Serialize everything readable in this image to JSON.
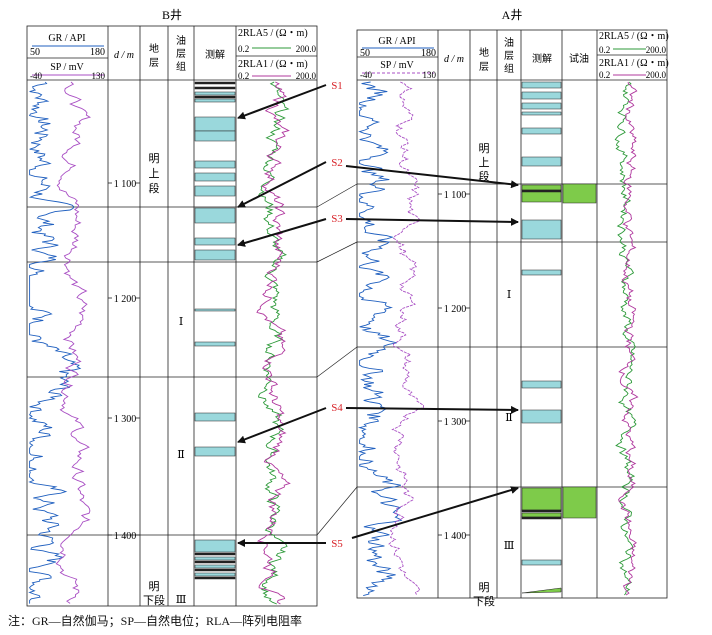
{
  "note": "注：GR—自然伽马；SP—自然电位；RLA—阵列电阻率",
  "wells": {
    "B": {
      "title": "B井",
      "gr": {
        "label": "GR / API",
        "min": "50",
        "max": "180"
      },
      "sp": {
        "label": "SP / mV",
        "min": "-40",
        "max": "130"
      },
      "depth_label": "d / m",
      "strata_label": [
        "地",
        "层"
      ],
      "oil_group_label": [
        "油",
        "层",
        "组"
      ],
      "interp_label": "测解",
      "rla5": {
        "label": "2RLA5 / (Ω・m)",
        "min": "0.2",
        "max": "200.0"
      },
      "rla1": {
        "label": "2RLA1 / (Ω・m)",
        "min": "0.2",
        "max": "200.0"
      },
      "depths": [
        "1 100",
        "1 200",
        "1 300",
        "1 400"
      ],
      "strata": [
        [
          "明",
          "上",
          "段"
        ],
        [
          "明",
          "下段"
        ]
      ],
      "oil_groups": [
        "Ⅰ",
        "Ⅱ",
        "Ⅲ"
      ]
    },
    "A": {
      "title": "A井",
      "gr": {
        "label": "GR / API",
        "min": "50",
        "max": "180"
      },
      "sp": {
        "label": "SP / mV",
        "min": "-40",
        "max": "130"
      },
      "depth_label": "d / m",
      "strata_label": [
        "地",
        "层"
      ],
      "oil_group_label": [
        "油",
        "层",
        "组"
      ],
      "interp_label": "测解",
      "test_label": "试油",
      "rla5": {
        "label": "2RLA5 / (Ω・m)",
        "min": "0.2",
        "max": "200.0"
      },
      "rla1": {
        "label": "2RLA1 / (Ω・m)",
        "min": "0.2",
        "max": "200.0"
      },
      "depths": [
        "1 100",
        "1 200",
        "1 300",
        "1 400"
      ],
      "strata": [
        [
          "明",
          "上",
          "段"
        ],
        [
          "明",
          "下段"
        ]
      ],
      "oil_groups": [
        "Ⅰ",
        "Ⅱ",
        "Ⅲ"
      ]
    }
  },
  "sands": [
    "S1",
    "S2",
    "S3",
    "S4",
    "S5"
  ],
  "colors": {
    "gr": "#1f5fbf",
    "sp": "#a94fc4",
    "rla5": "#2e9a3a",
    "rla1": "#b0389e",
    "water": "#9ad8dc",
    "oil": "#7ecb4a",
    "label": "#d8242a"
  }
}
